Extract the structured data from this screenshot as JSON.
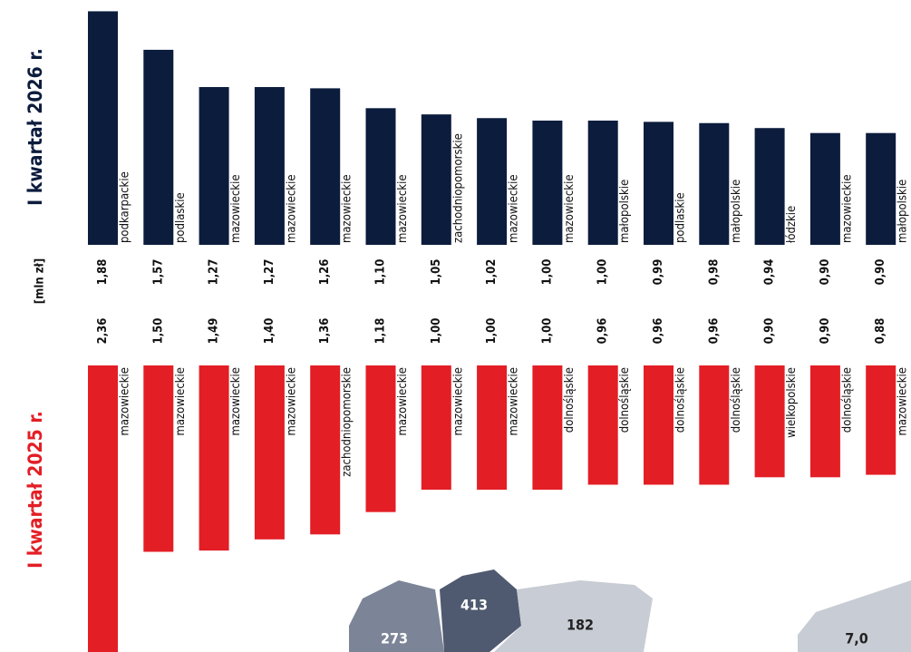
{
  "chart_data": {
    "type": "bar",
    "unit_label": "[mln zł]",
    "series": [
      {
        "name": "I kwartał 2026 r.",
        "color": "#0c1c3d",
        "direction": "up",
        "categories": [
          "podkarpackie",
          "podlaskie",
          "mazowieckie",
          "mazowieckie",
          "mazowieckie",
          "mazowieckie",
          "zachodniopomorskie",
          "mazowieckie",
          "mazowieckie",
          "małopolskie",
          "podlaskie",
          "małopolskie",
          "łódzkie",
          "mazowieckie",
          "małopolskie"
        ],
        "values": [
          1.88,
          1.57,
          1.27,
          1.27,
          1.26,
          1.1,
          1.05,
          1.02,
          1.0,
          1.0,
          0.99,
          0.98,
          0.94,
          0.9,
          0.9
        ],
        "value_labels": [
          "1,88",
          "1,57",
          "1,27",
          "1,27",
          "1,26",
          "1,10",
          "1,05",
          "1,02",
          "1,00",
          "1,00",
          "0,99",
          "0,98",
          "0,94",
          "0,90",
          "0,90"
        ]
      },
      {
        "name": "I kwartał 2025 r.",
        "color": "#e31e25",
        "direction": "down",
        "categories": [
          "mazowieckie",
          "mazowieckie",
          "mazowieckie",
          "mazowieckie",
          "zachodniopomorskie",
          "mazowieckie",
          "mazowieckie",
          "mazowieckie",
          "dolnośląskie",
          "dolnośląskie",
          "dolnośląskie",
          "dolnośląskie",
          "wielkopolskie",
          "dolnośląskie",
          "mazowieckie"
        ],
        "values": [
          2.36,
          1.5,
          1.49,
          1.4,
          1.36,
          1.18,
          1.0,
          1.0,
          1.0,
          0.96,
          0.96,
          0.96,
          0.9,
          0.9,
          0.88
        ],
        "value_labels": [
          "2,36",
          "1,50",
          "1,49",
          "1,40",
          "1,36",
          "1,18",
          "1,00",
          "1,00",
          "1,00",
          "0,96",
          "0,96",
          "0,96",
          "0,90",
          "0,90",
          "0,88"
        ]
      }
    ],
    "map_labels": [
      "413",
      "273",
      "182",
      "7,0"
    ]
  }
}
